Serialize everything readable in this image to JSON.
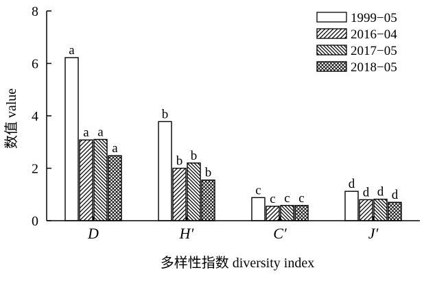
{
  "chart_data": {
    "type": "bar",
    "title": "",
    "xlabel": "多样性指数 diversity index",
    "ylabel": "数值 value",
    "ylim": [
      0,
      8
    ],
    "yticks": [
      0,
      2,
      4,
      6,
      8
    ],
    "grid": false,
    "legend_position": "top-right",
    "categories": [
      "D",
      "H′",
      "C′",
      "J′"
    ],
    "series": [
      {
        "name": "1999−05",
        "pattern": "none",
        "values": [
          6.22,
          3.78,
          0.88,
          1.12
        ],
        "labels": [
          "a",
          "b",
          "c",
          "d"
        ]
      },
      {
        "name": "2016−04",
        "pattern": "diagonal-forward",
        "values": [
          3.08,
          2.0,
          0.55,
          0.8
        ],
        "labels": [
          "a",
          "b",
          "c",
          "d"
        ]
      },
      {
        "name": "2017−05",
        "pattern": "diagonal-backward",
        "values": [
          3.1,
          2.2,
          0.58,
          0.82
        ],
        "labels": [
          "a",
          "b",
          "c",
          "d"
        ]
      },
      {
        "name": "2018−05",
        "pattern": "crosshatch",
        "values": [
          2.48,
          1.55,
          0.58,
          0.7
        ],
        "labels": [
          "a",
          "b",
          "c",
          "d"
        ]
      }
    ]
  }
}
